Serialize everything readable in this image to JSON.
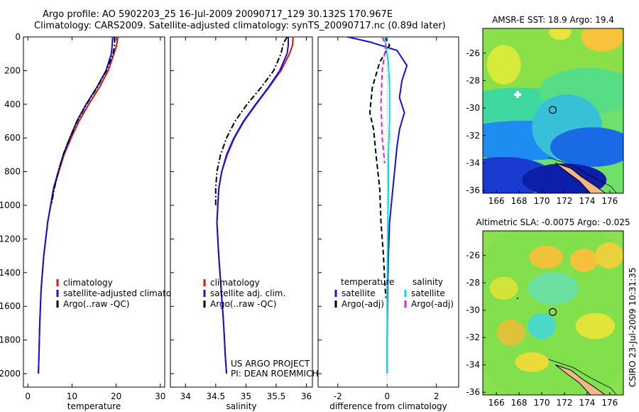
{
  "header": {
    "title_line1": "Argo profile: AO 5902203_25 16-Jul-2009 20090717_129 30.132S 170.967E",
    "title_line2": "Climatology: CARS2009. Satellite-adjusted climatology: synTS_20090717.nc (0.89d later)"
  },
  "credit": {
    "line1": "US ARGO PROJECT",
    "line2": "PI: DEAN ROEMMICH"
  },
  "stamp": "CSIRO 23-Jul-2009 10:31:35",
  "colors": {
    "climatology": "#e01010",
    "satellite": "#1010e0",
    "argo": "#000000",
    "satellite_diff": "#00e0e0",
    "argo_sal_diff": "#e020e0"
  },
  "chart_data": [
    {
      "type": "line",
      "xlabel": "temperature",
      "ylabel": "",
      "xlim": [
        -1,
        31
      ],
      "ylim": [
        2080,
        0
      ],
      "y_inverted": true,
      "xticks": [
        0,
        10,
        20,
        30
      ],
      "yticks": [
        0,
        200,
        400,
        600,
        800,
        1000,
        1200,
        1400,
        1600,
        1800,
        2000
      ],
      "series": [
        {
          "name": "climatology",
          "color": "#e01010",
          "style": "solid",
          "x": [
            20.4,
            20.1,
            19.5,
            18.2,
            16.2,
            13.8,
            11.6,
            9.8,
            8.2,
            7.0,
            5.9,
            4.5,
            3.6,
            3.0,
            2.7,
            2.5,
            2.4
          ],
          "y": [
            0,
            50,
            100,
            200,
            300,
            400,
            500,
            600,
            700,
            800,
            900,
            1100,
            1300,
            1500,
            1700,
            1900,
            2000
          ]
        },
        {
          "name": "satellite-adjusted climatology",
          "color": "#1010e0",
          "style": "solid",
          "x": [
            19.2,
            19.1,
            18.9,
            17.7,
            15.6,
            13.2,
            11.1,
            9.5,
            8.0,
            6.9,
            5.8,
            4.5,
            3.6,
            3.0,
            2.7,
            2.5,
            2.4
          ],
          "y": [
            0,
            50,
            100,
            200,
            300,
            400,
            500,
            600,
            700,
            800,
            900,
            1100,
            1300,
            1500,
            1700,
            1900,
            2000
          ]
        },
        {
          "name": "Argo(..raw -QC)",
          "color": "#000000",
          "style": "dashdot",
          "x": [
            19.6,
            19.7,
            19.3,
            17.8,
            15.7,
            13.3,
            11.2,
            9.5,
            8.0,
            6.9,
            6.0,
            5.3
          ],
          "y": [
            0,
            40,
            100,
            200,
            300,
            400,
            500,
            600,
            700,
            800,
            900,
            1000
          ]
        }
      ],
      "legend": {
        "position": "lower-right",
        "entries": [
          "climatology",
          "satellite-adjusted climatology",
          "Argo(..raw -QC)"
        ]
      }
    },
    {
      "type": "line",
      "xlabel": "salinity",
      "ylabel": "",
      "xlim": [
        33.75,
        36.1
      ],
      "ylim": [
        2080,
        0
      ],
      "y_inverted": true,
      "xticks": [
        34,
        34.5,
        35,
        35.5,
        36
      ],
      "series": [
        {
          "name": "climatology",
          "color": "#e01010",
          "style": "solid",
          "x": [
            35.78,
            35.77,
            35.72,
            35.58,
            35.38,
            35.17,
            34.97,
            34.81,
            34.69,
            34.6,
            34.55,
            34.52,
            34.55,
            34.59,
            34.63,
            34.66,
            34.68
          ],
          "y": [
            0,
            50,
            100,
            200,
            300,
            400,
            500,
            600,
            700,
            800,
            900,
            1100,
            1300,
            1500,
            1700,
            1900,
            2000
          ]
        },
        {
          "name": "satellite adj. clim.",
          "color": "#1010e0",
          "style": "solid",
          "x": [
            35.7,
            35.7,
            35.68,
            35.56,
            35.37,
            35.16,
            34.96,
            34.8,
            34.68,
            34.6,
            34.55,
            34.52,
            34.55,
            34.59,
            34.63,
            34.66,
            34.68
          ],
          "y": [
            0,
            50,
            100,
            200,
            300,
            400,
            500,
            600,
            700,
            800,
            900,
            1100,
            1300,
            1500,
            1700,
            1900,
            2000
          ]
        },
        {
          "name": "Argo(..raw -QC)",
          "color": "#000000",
          "style": "dashdot",
          "x": [
            35.68,
            35.62,
            35.58,
            35.46,
            35.25,
            35.02,
            34.82,
            34.68,
            34.58,
            34.52,
            34.5,
            34.5
          ],
          "y": [
            0,
            40,
            100,
            200,
            300,
            400,
            500,
            600,
            700,
            800,
            900,
            1000
          ]
        }
      ],
      "legend": {
        "position": "lower-right",
        "entries": [
          "climatology",
          "satellite adj. clim.",
          "Argo(..raw -QC)"
        ]
      }
    },
    {
      "type": "line",
      "xlabel": "difference from climatology",
      "ylabel": "",
      "xlim": [
        -2.8,
        2.9
      ],
      "ylim": [
        2080,
        0
      ],
      "y_inverted": true,
      "xticks": [
        -2,
        0,
        2
      ],
      "series": [
        {
          "name": "temperature satellite",
          "color": "#1010e0",
          "style": "solid",
          "x": [
            -1.6,
            -0.7,
            0.4,
            0.8,
            0.6,
            0.5,
            0.7,
            0.5,
            0.4,
            0.3,
            0.2,
            0.1,
            0.05,
            0.02,
            0.0,
            0.0
          ],
          "y": [
            0,
            30,
            80,
            170,
            260,
            360,
            450,
            550,
            650,
            800,
            950,
            1100,
            1300,
            1500,
            1800,
            2000
          ]
        },
        {
          "name": "temperature Argo(-adj)",
          "color": "#000000",
          "style": "dashed",
          "x": [
            -0.1,
            0.1,
            -0.3,
            -0.6,
            -0.7,
            -0.55,
            -0.45,
            -0.3,
            -0.25,
            -0.15,
            -0.1,
            -0.05
          ],
          "y": [
            0,
            50,
            150,
            300,
            450,
            550,
            700,
            900,
            1100,
            1300,
            1450,
            1550
          ]
        },
        {
          "name": "salinity satellite",
          "color": "#00e0e0",
          "style": "solid",
          "x": [
            -0.1,
            -0.05,
            0.05,
            0.1,
            0.1,
            0.05,
            0.05,
            0.02,
            0.0,
            0.0,
            0.0
          ],
          "y": [
            0,
            50,
            150,
            300,
            500,
            700,
            900,
            1200,
            1500,
            1800,
            2000
          ]
        },
        {
          "name": "salinity Argo(-adj)",
          "color": "#e020e0",
          "style": "dashed",
          "x": [
            -0.2,
            -0.05,
            -0.2,
            -0.25,
            -0.2,
            -0.1
          ],
          "y": [
            0,
            50,
            200,
            400,
            600,
            750
          ]
        }
      ],
      "legend": {
        "position": "lower-center",
        "headers": [
          "temperature",
          "salinity"
        ],
        "entries": [
          "satellite",
          "Argo(-adj)",
          "satellite",
          "Argo(-adj)"
        ]
      }
    },
    {
      "type": "heatmap",
      "title": "AMSR-E SST: 18.9 Argo: 19.4",
      "xlim": [
        164.8,
        177.2
      ],
      "ylim": [
        -36.2,
        -24.2
      ],
      "xticks": [
        166,
        168,
        170,
        172,
        174,
        176
      ],
      "yticks": [
        -26,
        -28,
        -30,
        -32,
        -34,
        -36
      ],
      "profile_marker": {
        "lon": 170.967,
        "lat": -30.132
      }
    },
    {
      "type": "heatmap",
      "title": "Altimetric SLA: -0.0075 Argo: -0.025",
      "xlim": [
        164.8,
        177.2
      ],
      "ylim": [
        -36.2,
        -24.2
      ],
      "xticks": [
        166,
        168,
        170,
        172,
        174,
        176
      ],
      "yticks": [
        -26,
        -28,
        -30,
        -32,
        -34,
        -36
      ],
      "profile_marker": {
        "lon": 170.967,
        "lat": -30.132
      }
    }
  ]
}
